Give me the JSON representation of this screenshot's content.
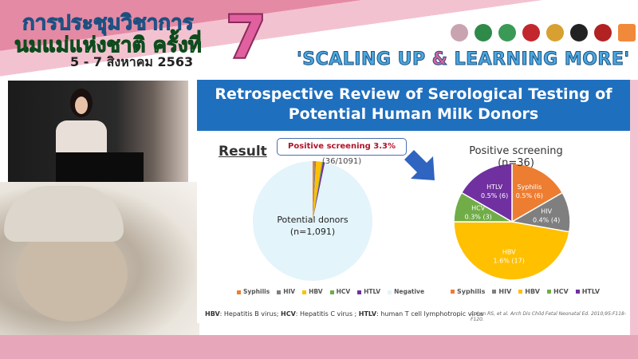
{
  "banner": {
    "title_line1": "การประชุมวิชาการ",
    "title_line2": "นมแม่แห่งชาติ ครั้งที่",
    "edition": "7",
    "dates": "5 - 7 สิงหาคม 2563",
    "tagline_a": "'SCALING UP ",
    "tagline_amp": "&",
    "tagline_b": " LEARNING MORE'"
  },
  "slide": {
    "title_line1": "Retrospective Review of Serological Testing of",
    "title_line2": "Potential Human Milk Donors",
    "result_heading": "Result",
    "callout_bold": "Positive screening 3.3%",
    "callout_rest": " (36/1091)",
    "footnote_parts": [
      "HBV",
      ": Hepatitis B virus; ",
      "HCV",
      ": Hepatitis C virus ; ",
      "HTLV",
      ": human T cell lymphotropic virus"
    ],
    "citation": "Cohen RS, et al. Arch Dis Child Fetal Neonatal Ed. 2010;95:F118-F120."
  },
  "chart_data": [
    {
      "type": "pie",
      "center_label_line1": "Potential donors",
      "center_label_line2": "(n=1,091)",
      "categories": [
        "Syphilis",
        "HIV",
        "HBV",
        "HCV",
        "HTLV",
        "Negative"
      ],
      "values": [
        6,
        4,
        17,
        3,
        6,
        1055
      ],
      "colors": [
        "#ed7d31",
        "#7f7f7f",
        "#ffc000",
        "#70ad47",
        "#7030a0",
        "#e3f4fb"
      ],
      "legend": "bottom"
    },
    {
      "type": "pie",
      "title": "Positive screening (n=36)",
      "categories": [
        "Syphilis",
        "HIV",
        "HBV",
        "HCV",
        "HTLV"
      ],
      "values": [
        6,
        4,
        17,
        3,
        6
      ],
      "data_labels": [
        "0.5% (6)",
        "0.4% (4)",
        "1.6% (17)",
        "0.3% (3)",
        "0.5% (6)"
      ],
      "colors": [
        "#ed7d31",
        "#7f7f7f",
        "#ffc000",
        "#70ad47",
        "#7030a0"
      ],
      "legend": "bottom"
    }
  ]
}
